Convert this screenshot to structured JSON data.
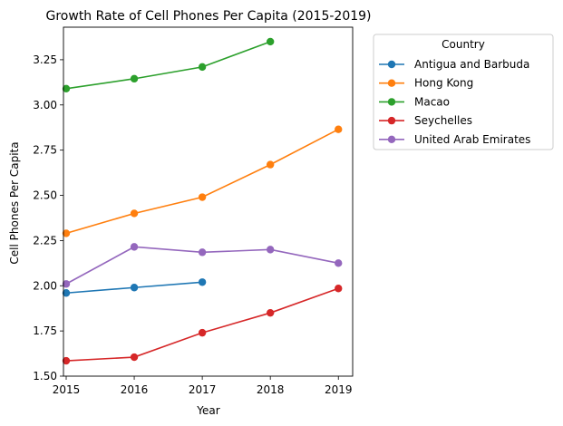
{
  "chart_data": {
    "type": "line",
    "title": "Growth Rate of Cell Phones Per Capita (2015-2019)",
    "xlabel": "Year",
    "ylabel": "Cell Phones Per Capita",
    "x": [
      2015,
      2016,
      2017,
      2018,
      2019
    ],
    "x_ticks": [
      "2015",
      "2016",
      "2017",
      "2018",
      "2019"
    ],
    "xlim": [
      2014.96,
      2019.21
    ],
    "ylim": [
      1.5,
      3.43
    ],
    "y_ticks": [
      "1.50",
      "1.75",
      "2.00",
      "2.25",
      "2.50",
      "2.75",
      "3.00",
      "3.25"
    ],
    "grid": false,
    "legend": {
      "title": "Country",
      "placement": "outside-right"
    },
    "series": [
      {
        "name": "Antigua and Barbuda",
        "color": "#1f77b4",
        "values": [
          1.96,
          1.99,
          2.02,
          null,
          null
        ]
      },
      {
        "name": "Hong Kong",
        "color": "#ff7f0e",
        "values": [
          2.29,
          2.4,
          2.49,
          2.67,
          2.865
        ]
      },
      {
        "name": "Macao",
        "color": "#2ca02c",
        "values": [
          3.09,
          3.145,
          3.21,
          3.35,
          null
        ]
      },
      {
        "name": "Seychelles",
        "color": "#d62728",
        "values": [
          1.585,
          1.605,
          1.74,
          1.85,
          1.985
        ]
      },
      {
        "name": "United Arab Emirates",
        "color": "#9467bd",
        "values": [
          2.01,
          2.215,
          2.185,
          2.2,
          2.125
        ]
      }
    ]
  }
}
